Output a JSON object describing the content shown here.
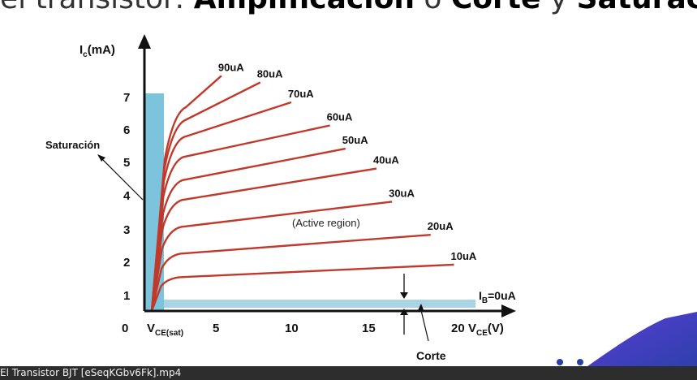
{
  "slide": {
    "title_lead": "el transistor: ",
    "title_a": "Amplificación",
    "title_mid": " o ",
    "title_b": "Corte",
    "title_mid2": " y ",
    "title_c": "Saturación."
  },
  "figure": {
    "y_axis_label": "I",
    "y_axis_sub": "c",
    "y_axis_unit": "(mA)",
    "x_axis_unit": "(V)",
    "vce_label": "V",
    "vce_sub": "CE",
    "vcesat_label": "V",
    "vcesat_sub": "CE(sat)",
    "origin": "0",
    "saturation_label": "Saturación",
    "active_label": "(Active region)",
    "cutoff_label": "Corte",
    "ib0_label": "I",
    "ib0_sub": "B",
    "ib0_value": "=0uA",
    "y_ticks": [
      "1",
      "2",
      "3",
      "4",
      "5",
      "6",
      "7"
    ],
    "x_ticks": [
      "5",
      "10",
      "15",
      "20"
    ],
    "curves": [
      {
        "label": "10uA",
        "ic_start": 1.0,
        "ic_end": 1.4,
        "vce_end": 19.5
      },
      {
        "label": "20uA",
        "ic_start": 1.7,
        "ic_end": 2.3,
        "vce_end": 18.0
      },
      {
        "label": "30uA",
        "ic_start": 2.5,
        "ic_end": 3.3,
        "vce_end": 15.5
      },
      {
        "label": "40uA",
        "ic_start": 3.3,
        "ic_end": 4.3,
        "vce_end": 14.5
      },
      {
        "label": "50uA",
        "ic_start": 3.9,
        "ic_end": 4.9,
        "vce_end": 12.5
      },
      {
        "label": "60uA",
        "ic_start": 4.6,
        "ic_end": 5.6,
        "vce_end": 11.5
      },
      {
        "label": "70uA",
        "ic_start": 5.2,
        "ic_end": 6.3,
        "vce_end": 9.0
      },
      {
        "label": "80uA",
        "ic_start": 5.7,
        "ic_end": 6.9,
        "vce_end": 7.0
      },
      {
        "label": "90uA",
        "ic_start": 6.1,
        "ic_end": 7.1,
        "vce_end": 4.5
      }
    ],
    "colors": {
      "curve": "#c0392b",
      "saturation": "#7cc3dc",
      "cutoff": "#a8d4e6",
      "axis": "#111111"
    }
  },
  "video": {
    "filename": "El Transistor BJT [eSeqKGbv6Fk].mp4"
  }
}
